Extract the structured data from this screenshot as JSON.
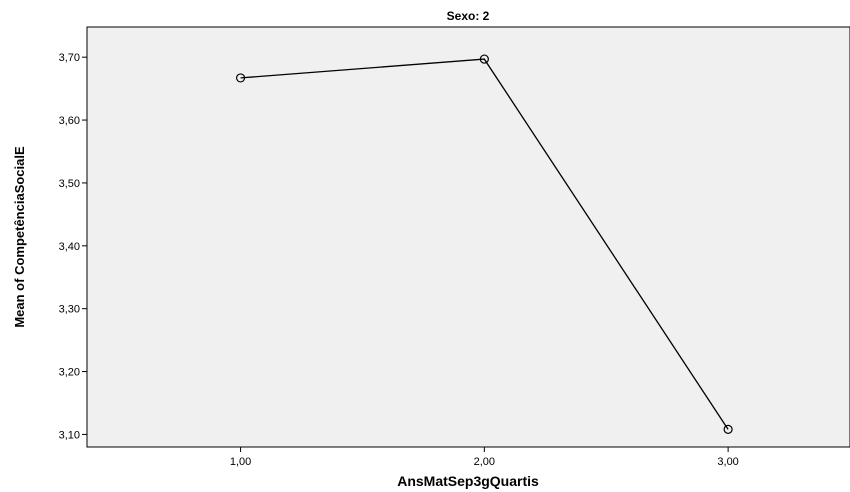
{
  "chart_data": {
    "type": "line",
    "title": "Sexo: 2",
    "xlabel": "AnsMatSep3gQuartis",
    "ylabel": "Mean of CompetênciaSocialE",
    "categories": [
      "1,00",
      "2,00",
      "3,00"
    ],
    "x": [
      1,
      2,
      3
    ],
    "series": [
      {
        "values": [
          3.667,
          3.697,
          3.108
        ]
      }
    ],
    "yticks": [
      3.1,
      3.2,
      3.3,
      3.4,
      3.5,
      3.6,
      3.7
    ],
    "ytick_labels": [
      "3,10",
      "3,20",
      "3,30",
      "3,40",
      "3,50",
      "3,60",
      "3,70"
    ],
    "ylim": [
      3.08,
      3.748
    ],
    "xlim": [
      0.37,
      3.5
    ],
    "grid": false,
    "colors": {
      "plot_background": "#f0f0f0",
      "line": "#000000",
      "frame": "#000000"
    }
  }
}
